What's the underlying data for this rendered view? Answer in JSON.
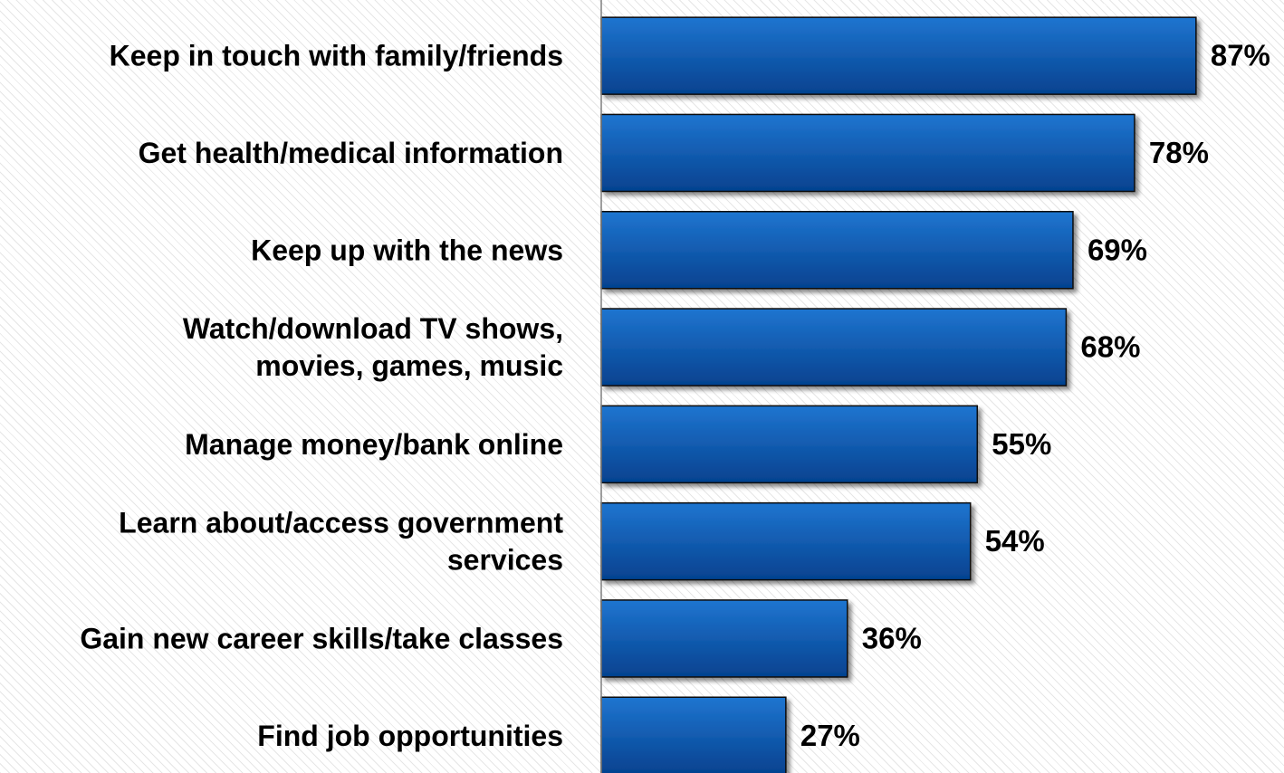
{
  "chart_data": {
    "type": "bar",
    "orientation": "horizontal",
    "categories": [
      [
        "Keep in touch with family/friends"
      ],
      [
        "Get health/medical information"
      ],
      [
        "Keep up with the news"
      ],
      [
        "Watch/download TV shows,",
        "movies, games, music"
      ],
      [
        "Manage money/bank online"
      ],
      [
        "Learn about/access government",
        "services"
      ],
      [
        "Gain new career skills/take classes"
      ],
      [
        "Find job opportunities"
      ]
    ],
    "values": [
      87,
      78,
      69,
      68,
      55,
      54,
      36,
      27
    ],
    "value_labels": [
      "87%",
      "78%",
      "69%",
      "68%",
      "55%",
      "54%",
      "36%",
      "27%"
    ],
    "xlim": [
      0,
      100
    ],
    "grid": false,
    "legend": "none",
    "title": "",
    "xlabel": "",
    "ylabel": ""
  },
  "colors": {
    "bar_light": "#1f75d0",
    "bar_dark": "#05428f",
    "bar_border": "#0a0a0a",
    "axis": "#7f7f7f"
  }
}
